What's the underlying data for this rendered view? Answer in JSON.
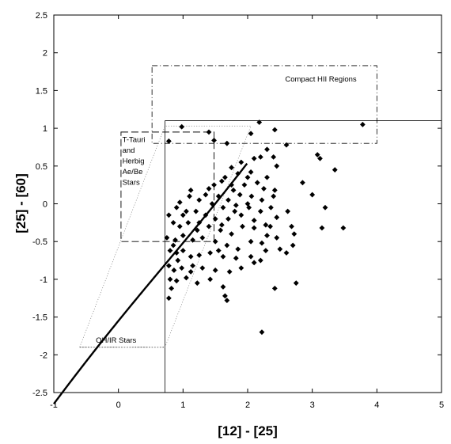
{
  "chart_data": {
    "type": "scatter",
    "xlabel": "[12] - [25]",
    "ylabel": "[25] - [60]",
    "xlim": [
      -1,
      5
    ],
    "ylim": [
      -2.5,
      2.5
    ],
    "xticks": [
      -1,
      0,
      1,
      2,
      3,
      4,
      5
    ],
    "yticks": [
      -2.5,
      -2,
      -1.5,
      -1,
      -0.5,
      0,
      0.5,
      1,
      1.5,
      2,
      2.5
    ],
    "grid": false,
    "legend": "none",
    "regions": [
      {
        "label": "Compact HII Regions",
        "lines": [
          "Compact HII Regions"
        ],
        "x": [
          0.52,
          4.0
        ],
        "y": [
          0.8,
          1.83
        ],
        "style": "dash-dot"
      },
      {
        "label": "T-Tauri and Herbig Ae/Be Stars",
        "lines": [
          "T-Tauri",
          "and",
          "Herbig",
          "Ae/Be",
          "Stars"
        ],
        "x": [
          0.04,
          1.48
        ],
        "y": [
          -0.5,
          0.95
        ],
        "style": "long-dash"
      },
      {
        "label": "OH/IR Stars",
        "lines": [
          "OH/IR Stars"
        ],
        "x": [
          -0.6,
          0.72
        ],
        "y": [
          -1.9,
          -1.9
        ],
        "style": "dotted"
      }
    ],
    "points": [
      [
        0.98,
        1.02
      ],
      [
        0.78,
        0.83
      ],
      [
        1.4,
        0.95
      ],
      [
        1.48,
        0.84
      ],
      [
        1.68,
        0.8
      ],
      [
        2.18,
        1.08
      ],
      [
        2.05,
        0.93
      ],
      [
        2.42,
        0.98
      ],
      [
        3.78,
        1.05
      ],
      [
        2.3,
        0.72
      ],
      [
        2.2,
        0.62
      ],
      [
        2.4,
        0.62
      ],
      [
        2.6,
        0.78
      ],
      [
        3.08,
        0.65
      ],
      [
        3.12,
        0.6
      ],
      [
        3.35,
        0.45
      ],
      [
        2.1,
        0.6
      ],
      [
        1.9,
        0.55
      ],
      [
        1.75,
        0.48
      ],
      [
        1.65,
        0.35
      ],
      [
        1.85,
        0.4
      ],
      [
        2.05,
        0.42
      ],
      [
        2.45,
        0.5
      ],
      [
        2.3,
        0.35
      ],
      [
        1.6,
        0.3
      ],
      [
        1.75,
        0.25
      ],
      [
        1.95,
        0.25
      ],
      [
        2.15,
        0.28
      ],
      [
        2.25,
        0.2
      ],
      [
        2.85,
        0.28
      ],
      [
        2.42,
        0.18
      ],
      [
        1.4,
        0.2
      ],
      [
        1.55,
        0.1
      ],
      [
        1.7,
        0.05
      ],
      [
        1.88,
        0.12
      ],
      [
        2.06,
        0.1
      ],
      [
        2.22,
        0.05
      ],
      [
        2.4,
        0.1
      ],
      [
        3.0,
        0.12
      ],
      [
        1.12,
        0.18
      ],
      [
        1.25,
        0.05
      ],
      [
        1.45,
        0.0
      ],
      [
        1.62,
        -0.05
      ],
      [
        1.82,
        -0.02
      ],
      [
        2.0,
        0.0
      ],
      [
        2.2,
        -0.1
      ],
      [
        2.36,
        -0.05
      ],
      [
        3.2,
        -0.05
      ],
      [
        2.62,
        -0.1
      ],
      [
        0.9,
        -0.05
      ],
      [
        1.05,
        -0.1
      ],
      [
        1.2,
        -0.1
      ],
      [
        1.35,
        -0.15
      ],
      [
        1.5,
        -0.2
      ],
      [
        1.7,
        -0.2
      ],
      [
        1.9,
        -0.15
      ],
      [
        2.1,
        -0.22
      ],
      [
        2.28,
        -0.28
      ],
      [
        2.45,
        -0.18
      ],
      [
        0.78,
        -0.15
      ],
      [
        0.85,
        -0.25
      ],
      [
        0.95,
        -0.3
      ],
      [
        1.08,
        -0.25
      ],
      [
        1.22,
        -0.35
      ],
      [
        1.4,
        -0.3
      ],
      [
        1.58,
        -0.35
      ],
      [
        1.75,
        -0.4
      ],
      [
        1.92,
        -0.3
      ],
      [
        2.1,
        -0.32
      ],
      [
        2.3,
        -0.42
      ],
      [
        2.45,
        -0.45
      ],
      [
        2.68,
        -0.3
      ],
      [
        2.72,
        -0.4
      ],
      [
        3.15,
        -0.32
      ],
      [
        3.48,
        -0.32
      ],
      [
        0.75,
        -0.45
      ],
      [
        0.88,
        -0.48
      ],
      [
        1.0,
        -0.42
      ],
      [
        1.15,
        -0.48
      ],
      [
        1.3,
        -0.45
      ],
      [
        1.5,
        -0.5
      ],
      [
        1.68,
        -0.55
      ],
      [
        1.85,
        -0.6
      ],
      [
        2.05,
        -0.5
      ],
      [
        2.22,
        -0.52
      ],
      [
        2.5,
        -0.6
      ],
      [
        2.7,
        -0.55
      ],
      [
        0.8,
        -0.62
      ],
      [
        0.9,
        -0.65
      ],
      [
        1.0,
        -0.62
      ],
      [
        1.12,
        -0.7
      ],
      [
        1.25,
        -0.68
      ],
      [
        1.42,
        -0.65
      ],
      [
        1.62,
        -0.7
      ],
      [
        1.82,
        -0.72
      ],
      [
        2.05,
        -0.7
      ],
      [
        2.2,
        -0.75
      ],
      [
        2.6,
        -0.65
      ],
      [
        0.78,
        -0.82
      ],
      [
        0.86,
        -0.88
      ],
      [
        0.98,
        -0.85
      ],
      [
        1.12,
        -0.9
      ],
      [
        1.3,
        -0.85
      ],
      [
        1.5,
        -0.88
      ],
      [
        1.72,
        -0.9
      ],
      [
        1.9,
        -0.85
      ],
      [
        2.1,
        -0.78
      ],
      [
        0.8,
        -1.0
      ],
      [
        0.9,
        -1.02
      ],
      [
        1.05,
        -0.98
      ],
      [
        1.22,
        -1.05
      ],
      [
        1.42,
        -1.0
      ],
      [
        1.62,
        -1.1
      ],
      [
        0.82,
        -1.12
      ],
      [
        0.78,
        -1.25
      ],
      [
        1.65,
        -1.22
      ],
      [
        1.68,
        -1.28
      ],
      [
        2.42,
        -1.12
      ],
      [
        2.75,
        -1.05
      ],
      [
        2.22,
        -1.7
      ],
      [
        0.85,
        -0.55
      ],
      [
        1.0,
        -0.15
      ],
      [
        1.25,
        -0.25
      ],
      [
        0.95,
        0.02
      ],
      [
        1.1,
        0.1
      ],
      [
        1.55,
        -0.62
      ],
      [
        1.8,
        -0.1
      ],
      [
        2.02,
        -0.05
      ],
      [
        0.92,
        -0.75
      ],
      [
        1.35,
        0.12
      ],
      [
        1.6,
        -0.28
      ],
      [
        2.35,
        -0.3
      ],
      [
        1.15,
        -0.82
      ],
      [
        1.48,
        0.25
      ],
      [
        1.78,
        0.18
      ],
      [
        2.0,
        0.35
      ],
      [
        2.28,
        -0.62
      ]
    ]
  }
}
